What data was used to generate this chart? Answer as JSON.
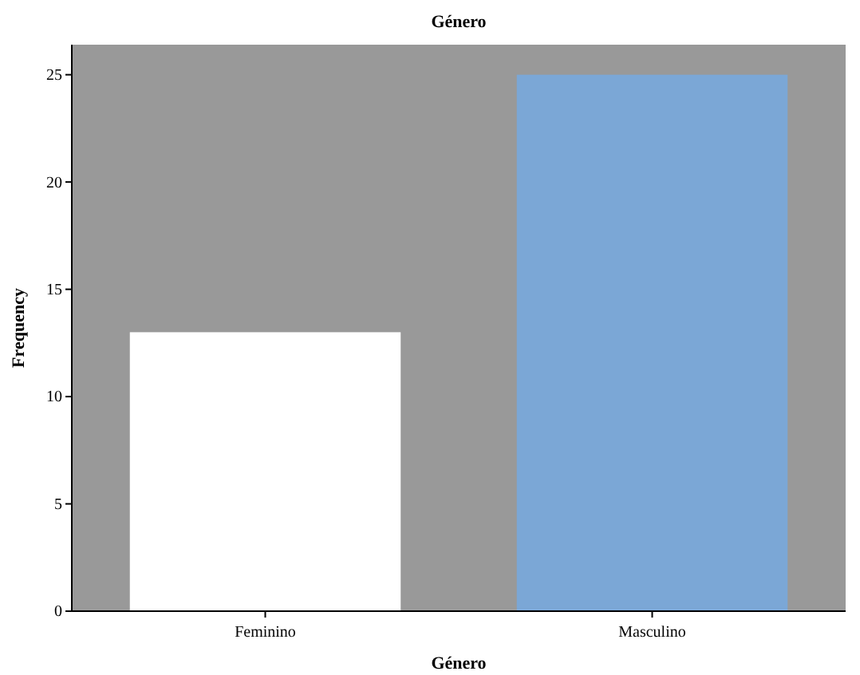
{
  "chart_data": {
    "type": "bar",
    "title": "Género",
    "xlabel": "Género",
    "ylabel": "Frequency",
    "categories": [
      "Feminino",
      "Masculino"
    ],
    "values": [
      13,
      25
    ],
    "colors": [
      "#ffffff",
      "#7ba7d6"
    ],
    "ylim": [
      0,
      26.4
    ],
    "yticks": [
      0,
      5,
      10,
      15,
      20,
      25
    ],
    "grid": false
  }
}
